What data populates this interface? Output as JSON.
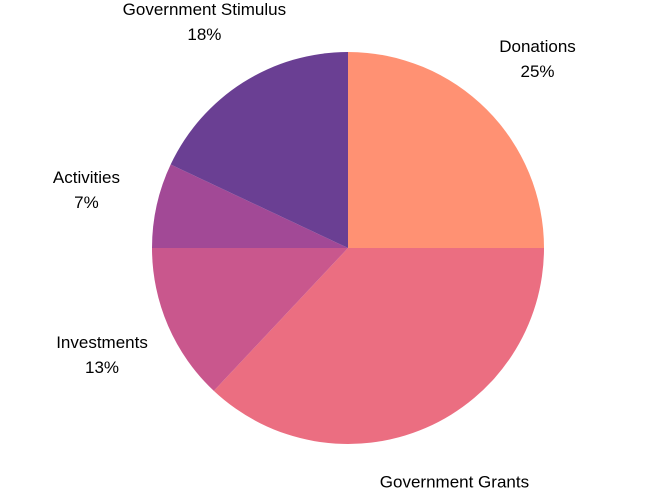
{
  "chart_data": {
    "type": "pie",
    "title": "",
    "start_angle_deg": 90,
    "direction": "clockwise",
    "slices": [
      {
        "label": "Donations",
        "value": 25,
        "value_label": "25%",
        "color": "#FF9173"
      },
      {
        "label": "Government Grants",
        "value": 37,
        "value_label": "37%",
        "color": "#EB6E81"
      },
      {
        "label": "Investments",
        "value": 13,
        "value_label": "13%",
        "color": "#C9578D"
      },
      {
        "label": "Activities",
        "value": 7,
        "value_label": "7%",
        "color": "#A24996"
      },
      {
        "label": "Government Stimulus",
        "value": 18,
        "value_label": "18%",
        "color": "#6A3F93"
      }
    ]
  }
}
